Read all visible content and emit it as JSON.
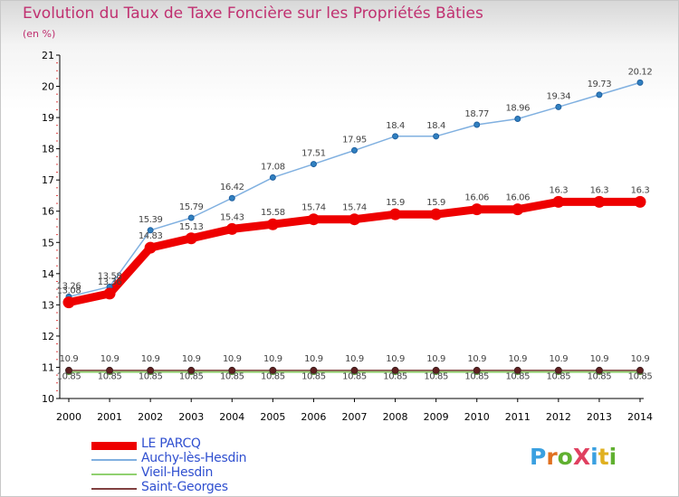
{
  "title": "Evolution du Taux de Taxe Foncière sur les Propriétés Bâties",
  "subtitle": "(en %)",
  "logo": "ProXiti",
  "chart_data": {
    "type": "line",
    "title": "Evolution du Taux de Taxe Foncière sur les Propriétés Bâties",
    "ylabel": "(en %)",
    "xlabel": "",
    "ylim": [
      10,
      21
    ],
    "yticks": [
      "10",
      "11",
      "12",
      "13",
      "14",
      "15",
      "16",
      "17",
      "18",
      "19",
      "20",
      "21"
    ],
    "x": [
      "2000",
      "2001",
      "2002",
      "2003",
      "2004",
      "2005",
      "2006",
      "2007",
      "2008",
      "2009",
      "2010",
      "2011",
      "2012",
      "2013",
      "2014"
    ],
    "grid": false,
    "legend": "bottom-left",
    "series": [
      {
        "name": "LE PARCQ",
        "color": "#ee0000",
        "values": [
          13.08,
          13.36,
          14.83,
          15.13,
          15.43,
          15.58,
          15.74,
          15.74,
          15.9,
          15.9,
          16.06,
          16.06,
          16.3,
          16.3,
          16.3
        ],
        "labels": [
          "13.08",
          "13.36",
          "14.83",
          "15.13",
          "15.43",
          "15.58",
          "15.74",
          "15.74",
          "15.9",
          "15.9",
          "16.06",
          "16.06",
          "16.3",
          "16.3",
          "16.3"
        ]
      },
      {
        "name": "Auchy-lès-Hesdin",
        "color": "#80b0e0",
        "values": [
          13.26,
          13.58,
          15.39,
          15.79,
          16.42,
          17.08,
          17.51,
          17.95,
          18.4,
          18.4,
          18.77,
          18.96,
          19.34,
          19.73,
          20.12
        ],
        "labels": [
          "13.26",
          "13.58",
          "15.39",
          "15.79",
          "16.42",
          "17.08",
          "17.51",
          "17.95",
          "18.4",
          "18.4",
          "18.77",
          "18.96",
          "19.34",
          "19.73",
          "20.12"
        ]
      },
      {
        "name": "Vieil-Hesdin",
        "color": "#90d070",
        "values": [
          10.85,
          10.85,
          10.85,
          10.85,
          10.85,
          10.85,
          10.85,
          10.85,
          10.85,
          10.85,
          10.85,
          10.85,
          10.85,
          10.85,
          10.85
        ],
        "labels": [
          "10.85",
          "10.85",
          "10.85",
          "10.85",
          "10.85",
          "10.85",
          "10.85",
          "10.85",
          "10.85",
          "10.85",
          "10.85",
          "10.85",
          "10.85",
          "10.85",
          "10.85"
        ]
      },
      {
        "name": "Saint-Georges",
        "color": "#804040",
        "values": [
          10.9,
          10.9,
          10.9,
          10.9,
          10.9,
          10.9,
          10.9,
          10.9,
          10.9,
          10.9,
          10.9,
          10.9,
          10.9,
          10.9,
          10.9
        ],
        "labels": [
          "10.9",
          "10.9",
          "10.9",
          "10.9",
          "10.9",
          "10.9",
          "10.9",
          "10.9",
          "10.9",
          "10.9",
          "10.9",
          "10.9",
          "10.9",
          "10.9",
          "10.9"
        ]
      }
    ]
  }
}
